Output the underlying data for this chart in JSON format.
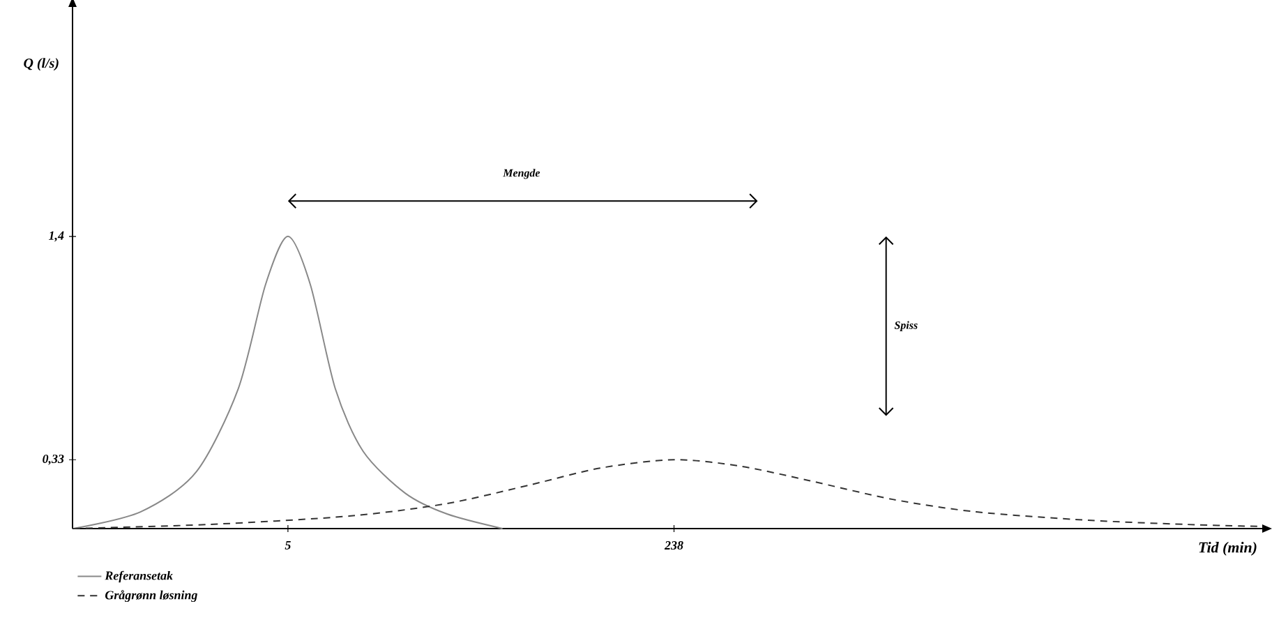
{
  "chart_data": {
    "type": "line",
    "xlabel": "Tid (min)",
    "ylabel": "Q (l/s)",
    "xlim": [
      -125,
      593
    ],
    "ylim": [
      0,
      2.5
    ],
    "xticks": [
      5,
      238
    ],
    "yticks": [
      {
        "value": 0.33,
        "label": "0,33"
      },
      {
        "value": 1.4,
        "label": "1,4"
      }
    ],
    "legend": "bottom left",
    "marker": "none",
    "annotations": [
      "Mengde",
      "Spiss"
    ],
    "series": [
      {
        "name": "Referansetak",
        "color": "#888888",
        "line_style": "solid",
        "x": [
          -124.5,
          -84,
          -50.5,
          -25,
          -8.5,
          5,
          18.5,
          33.6,
          50.4,
          75.7,
          101,
          134.5
        ],
        "values": [
          0,
          0.08,
          0.27,
          0.67,
          1.17,
          1.4,
          1.17,
          0.67,
          0.37,
          0.17,
          0.07,
          0
        ]
      },
      {
        "name": "Grågrønn løsning",
        "color": "#333333",
        "line_style": "dashed",
        "x": [
          -124.5,
          -42.1,
          42,
          100.9,
          151.4,
          193.4,
          238,
          277.5,
          319.6,
          370,
          420.5,
          488,
          546.7,
          593
        ],
        "values": [
          0,
          0.02,
          0.06,
          0.12,
          0.21,
          0.29,
          0.33,
          0.3,
          0.23,
          0.14,
          0.08,
          0.04,
          0.02,
          0.01
        ]
      }
    ]
  }
}
